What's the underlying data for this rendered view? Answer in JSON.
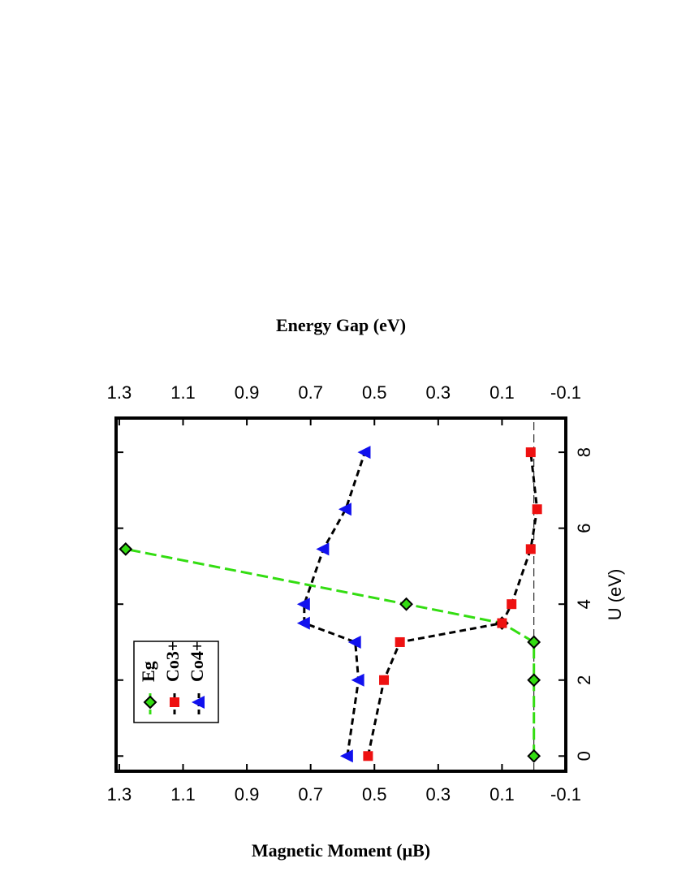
{
  "chart_data": {
    "type": "line",
    "xlabel": "U (eV)",
    "ylabel": "Magnetic Moment (μB)",
    "y2label": "Energy Gap (eV)",
    "xlim": [
      -0.4,
      8.9
    ],
    "xticks": [
      0,
      2,
      4,
      6,
      8
    ],
    "ylim": [
      -0.1,
      1.31
    ],
    "yticks": [
      -0.1,
      0.1,
      0.3,
      0.5,
      0.7,
      0.9,
      1.1,
      1.3
    ],
    "y2lim": [
      -0.1,
      1.31
    ],
    "y2ticks": [
      -0.1,
      0.1,
      0.3,
      0.5,
      0.7,
      0.9,
      1.1,
      1.3
    ],
    "hline": 0,
    "legend": "upper left",
    "series": [
      {
        "name": "Eg",
        "color": "#33dd11",
        "marker": "diamond",
        "axis": "y2",
        "x": [
          0,
          2,
          3,
          3.5,
          4,
          5.45
        ],
        "values": [
          0,
          0,
          0,
          0.1,
          0.4,
          1.28
        ]
      },
      {
        "name": "Co3+",
        "color": "#ee1111",
        "marker": "square",
        "x": [
          0,
          2,
          3,
          3.5,
          4,
          5.45,
          6.5,
          8
        ],
        "values": [
          0.52,
          0.47,
          0.42,
          0.1,
          0.07,
          0.01,
          -0.01,
          0.01
        ]
      },
      {
        "name": "Co4+",
        "color": "#1111ee",
        "marker": "triangle",
        "x": [
          0,
          2,
          3,
          3.5,
          4,
          5.45,
          6.5,
          8
        ],
        "values": [
          0.585,
          0.55,
          0.56,
          0.72,
          0.72,
          0.66,
          0.59,
          0.53
        ]
      }
    ]
  }
}
